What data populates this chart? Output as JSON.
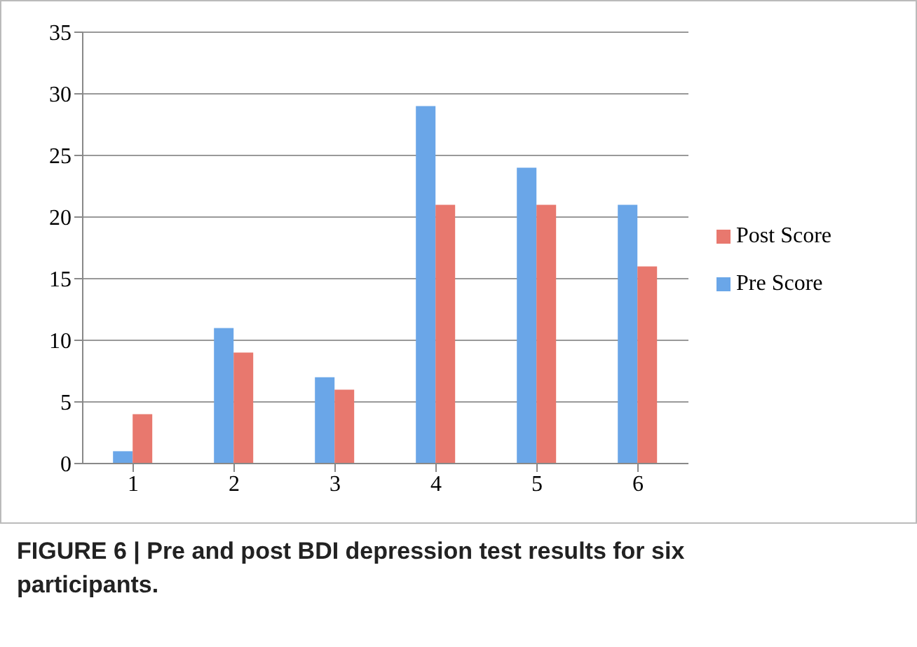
{
  "chart_data": {
    "type": "bar",
    "categories": [
      "1",
      "2",
      "3",
      "4",
      "5",
      "6"
    ],
    "series": [
      {
        "name": "Pre Score",
        "color": "#6aa6e8",
        "values": [
          1,
          11,
          7,
          29,
          24,
          21
        ]
      },
      {
        "name": "Post Score",
        "color": "#e8786e",
        "values": [
          4,
          9,
          6,
          21,
          21,
          16
        ]
      }
    ],
    "ylim": [
      0,
      35
    ],
    "yticks": [
      0,
      5,
      10,
      15,
      20,
      25,
      30,
      35
    ],
    "grid": "y",
    "legend": "right",
    "annotations": [
      "FIGURE 6 | Pre and post BDI depression test results for six participants."
    ]
  }
}
